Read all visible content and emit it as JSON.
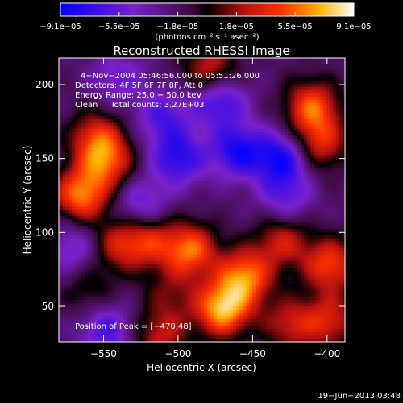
{
  "chart_data": {
    "type": "heatmap",
    "title": "Reconstructed RHESSI Image",
    "xlabel": "Heliocentric X (arcsec)",
    "ylabel": "Heliocentric Y (arcsec)",
    "xlim": [
      -580,
      -388
    ],
    "ylim": [
      26,
      218
    ],
    "x_ticks": [
      -550,
      -500,
      -450,
      -400
    ],
    "y_ticks": [
      50,
      100,
      150,
      200
    ],
    "x_tick_labels": [
      "−550",
      "−500",
      "−450",
      "−400"
    ],
    "y_tick_labels": [
      "50",
      "100",
      "150",
      "200"
    ],
    "colorbar": {
      "min": -9.1e-05,
      "max": 9.1e-05,
      "tick_labels": [
        "−9.1e−05",
        "−5.5e−05",
        "−1.8e−05",
        "1.8e−05",
        "5.5e−05",
        "9.1e−05"
      ],
      "unit_label": "(photons cm⁻² s⁻¹ asec⁻²)"
    },
    "annotations": [
      "4−Nov−2004 05:46:56.000 to 05:51:26.000",
      "Detectors: 4F 5F 6F 7F 8F, Att 0",
      "Energy Range: 25.0 − 50.0 keV",
      "Clean     Total counts: 3.27E+03"
    ],
    "peak_label": "Position of Peak = [−470,48]",
    "peak": {
      "x": -470,
      "y": 48
    },
    "sources": [
      {
        "x": -470,
        "y": 48,
        "amp": 1.0
      },
      {
        "x": -455,
        "y": 70,
        "amp": 0.85
      },
      {
        "x": -492,
        "y": 88,
        "amp": 0.8
      },
      {
        "x": -398,
        "y": 78,
        "amp": 0.7
      },
      {
        "x": -430,
        "y": 95,
        "amp": 0.55
      },
      {
        "x": -410,
        "y": 185,
        "amp": 0.75
      },
      {
        "x": -405,
        "y": 160,
        "amp": 0.6
      },
      {
        "x": -565,
        "y": 125,
        "amp": 0.85
      },
      {
        "x": -548,
        "y": 148,
        "amp": 0.7
      },
      {
        "x": -555,
        "y": 165,
        "amp": 0.55
      },
      {
        "x": -520,
        "y": 95,
        "amp": 0.55
      },
      {
        "x": -540,
        "y": 92,
        "amp": 0.5
      },
      {
        "x": -560,
        "y": 60,
        "amp": 0.3
      },
      {
        "x": -478,
        "y": 210,
        "amp": 0.6
      },
      {
        "x": -512,
        "y": 30,
        "amp": 0.5
      },
      {
        "x": -425,
        "y": 38,
        "amp": 0.5
      },
      {
        "x": -398,
        "y": 40,
        "amp": 0.55
      },
      {
        "x": -505,
        "y": 58,
        "amp": 0.3
      },
      {
        "x": -500,
        "y": 150,
        "amp": -0.6
      },
      {
        "x": -460,
        "y": 155,
        "amp": -0.65
      },
      {
        "x": -430,
        "y": 150,
        "amp": -0.7
      },
      {
        "x": -472,
        "y": 190,
        "amp": -0.6
      },
      {
        "x": -510,
        "y": 178,
        "amp": -0.45
      },
      {
        "x": -525,
        "y": 118,
        "amp": -0.45
      },
      {
        "x": -548,
        "y": 35,
        "amp": -0.5
      },
      {
        "x": -570,
        "y": 90,
        "amp": -0.4
      },
      {
        "x": -428,
        "y": 122,
        "amp": -0.4
      },
      {
        "x": -540,
        "y": 205,
        "amp": -0.35
      }
    ]
  },
  "footer": {
    "timestamp": "19−Jun−2013 03:48"
  }
}
